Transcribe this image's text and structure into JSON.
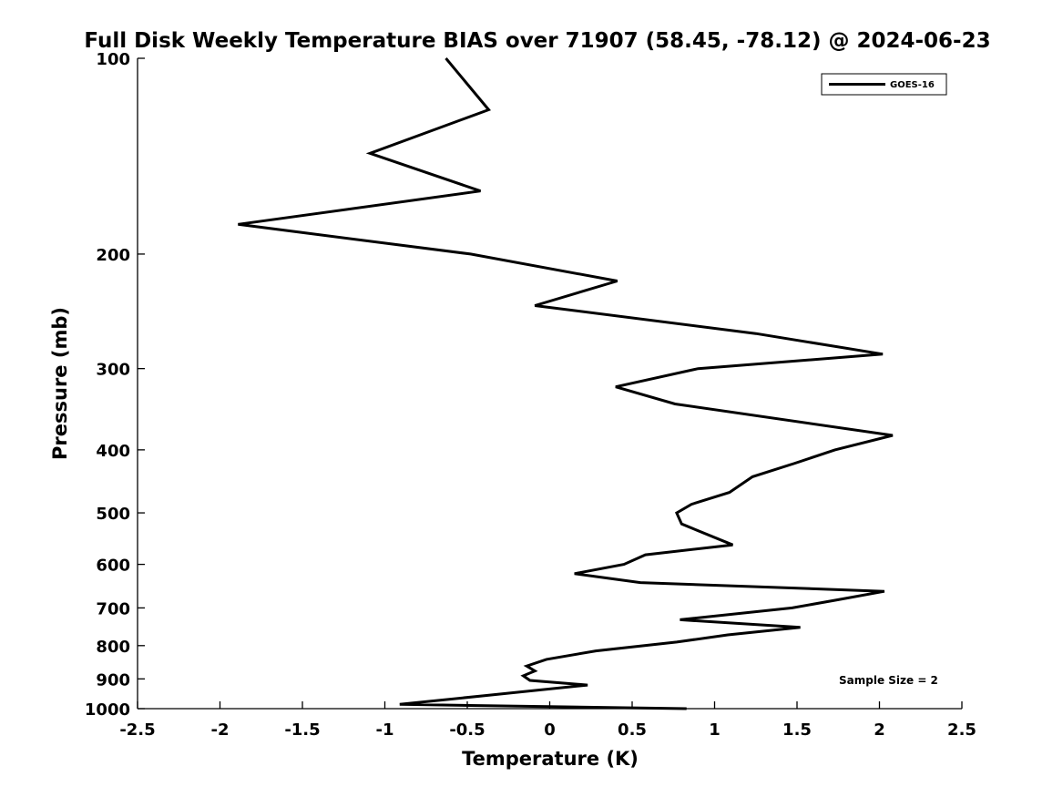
{
  "chart_data": {
    "type": "line",
    "title": "Full Disk Weekly Temperature BIAS over 71907 (58.45, -78.12) @ 2024-06-23",
    "xlabel": "Temperature (K)",
    "ylabel": "Pressure (mb)",
    "xlim": [
      -2.5,
      2.5
    ],
    "ylim": [
      1000,
      100
    ],
    "yscale": "log",
    "y_reversed": true,
    "x_ticks": [
      -2.5,
      -2,
      -1.5,
      -1,
      -0.5,
      0,
      0.5,
      1,
      1.5,
      2,
      2.5
    ],
    "x_tick_labels": [
      "-2.5",
      "-2",
      "-1.5",
      "-1",
      "-0.5",
      "0",
      "0.5",
      "1",
      "1.5",
      "2",
      "2.5"
    ],
    "y_ticks": [
      100,
      200,
      300,
      400,
      500,
      600,
      700,
      800,
      900,
      1000
    ],
    "y_tick_labels": [
      "100",
      "200",
      "300",
      "400",
      "500",
      "600",
      "700",
      "800",
      "900",
      "1000"
    ],
    "grid": false,
    "legend_position": "top-right",
    "series": [
      {
        "name": "GOES-16",
        "color": "#000000",
        "points": [
          {
            "x": -0.63,
            "y": 100
          },
          {
            "x": -0.37,
            "y": 120
          },
          {
            "x": -1.09,
            "y": 140
          },
          {
            "x": -0.42,
            "y": 160
          },
          {
            "x": -1.89,
            "y": 180
          },
          {
            "x": -0.48,
            "y": 200
          },
          {
            "x": 0.41,
            "y": 220
          },
          {
            "x": -0.09,
            "y": 240
          },
          {
            "x": 1.25,
            "y": 265
          },
          {
            "x": 2.02,
            "y": 285
          },
          {
            "x": 0.9,
            "y": 300
          },
          {
            "x": 0.4,
            "y": 320
          },
          {
            "x": 0.76,
            "y": 340
          },
          {
            "x": 2.08,
            "y": 380
          },
          {
            "x": 1.73,
            "y": 400
          },
          {
            "x": 1.48,
            "y": 420
          },
          {
            "x": 1.23,
            "y": 440
          },
          {
            "x": 1.09,
            "y": 465
          },
          {
            "x": 0.86,
            "y": 485
          },
          {
            "x": 0.77,
            "y": 500
          },
          {
            "x": 0.8,
            "y": 520
          },
          {
            "x": 1.11,
            "y": 560
          },
          {
            "x": 0.58,
            "y": 580
          },
          {
            "x": 0.45,
            "y": 600
          },
          {
            "x": 0.15,
            "y": 620
          },
          {
            "x": 0.55,
            "y": 640
          },
          {
            "x": 2.03,
            "y": 660
          },
          {
            "x": 1.75,
            "y": 680
          },
          {
            "x": 1.47,
            "y": 700
          },
          {
            "x": 0.79,
            "y": 730
          },
          {
            "x": 1.52,
            "y": 750
          },
          {
            "x": 1.08,
            "y": 770
          },
          {
            "x": 0.77,
            "y": 790
          },
          {
            "x": 0.28,
            "y": 815
          },
          {
            "x": -0.02,
            "y": 840
          },
          {
            "x": -0.14,
            "y": 860
          },
          {
            "x": -0.09,
            "y": 875
          },
          {
            "x": -0.16,
            "y": 890
          },
          {
            "x": -0.12,
            "y": 905
          },
          {
            "x": 0.23,
            "y": 920
          },
          {
            "x": -0.91,
            "y": 985
          },
          {
            "x": 0.83,
            "y": 1000
          }
        ]
      }
    ],
    "annotations": [
      {
        "text": "Sample Size = 2",
        "position": "bottom-right"
      }
    ]
  }
}
